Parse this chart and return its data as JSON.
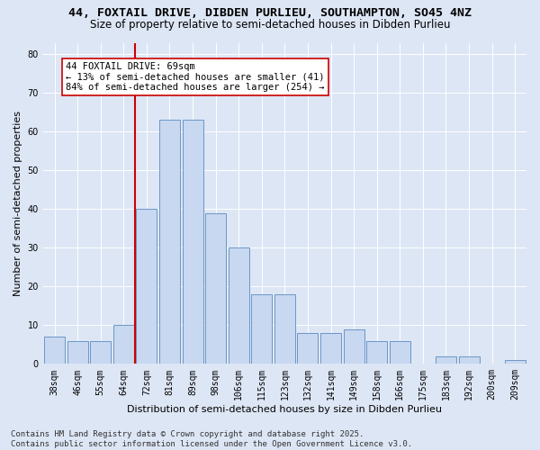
{
  "title_line1": "44, FOXTAIL DRIVE, DIBDEN PURLIEU, SOUTHAMPTON, SO45 4NZ",
  "title_line2": "Size of property relative to semi-detached houses in Dibden Purlieu",
  "xlabel": "Distribution of semi-detached houses by size in Dibden Purlieu",
  "ylabel": "Number of semi-detached properties",
  "categories": [
    "38sqm",
    "46sqm",
    "55sqm",
    "64sqm",
    "72sqm",
    "81sqm",
    "89sqm",
    "98sqm",
    "106sqm",
    "115sqm",
    "123sqm",
    "132sqm",
    "141sqm",
    "149sqm",
    "158sqm",
    "166sqm",
    "175sqm",
    "183sqm",
    "192sqm",
    "200sqm",
    "209sqm"
  ],
  "values": [
    7,
    6,
    6,
    10,
    40,
    63,
    63,
    39,
    30,
    18,
    18,
    8,
    8,
    9,
    6,
    6,
    0,
    2,
    2,
    0,
    1
  ],
  "bar_color": "#c8d8f0",
  "bar_edge_color": "#5b8bbf",
  "vline_color": "#cc0000",
  "annotation_text": "44 FOXTAIL DRIVE: 69sqm\n← 13% of semi-detached houses are smaller (41)\n84% of semi-detached houses are larger (254) →",
  "annotation_box_color": "#ffffff",
  "annotation_box_edge": "#cc0000",
  "ylim": [
    0,
    83
  ],
  "yticks": [
    0,
    10,
    20,
    30,
    40,
    50,
    60,
    70,
    80
  ],
  "bg_color": "#dde6f5",
  "footer": "Contains HM Land Registry data © Crown copyright and database right 2025.\nContains public sector information licensed under the Open Government Licence v3.0.",
  "title_fontsize": 9.5,
  "subtitle_fontsize": 8.5,
  "xlabel_fontsize": 8,
  "ylabel_fontsize": 8,
  "tick_fontsize": 7,
  "annotation_fontsize": 7.5,
  "footer_fontsize": 6.5
}
